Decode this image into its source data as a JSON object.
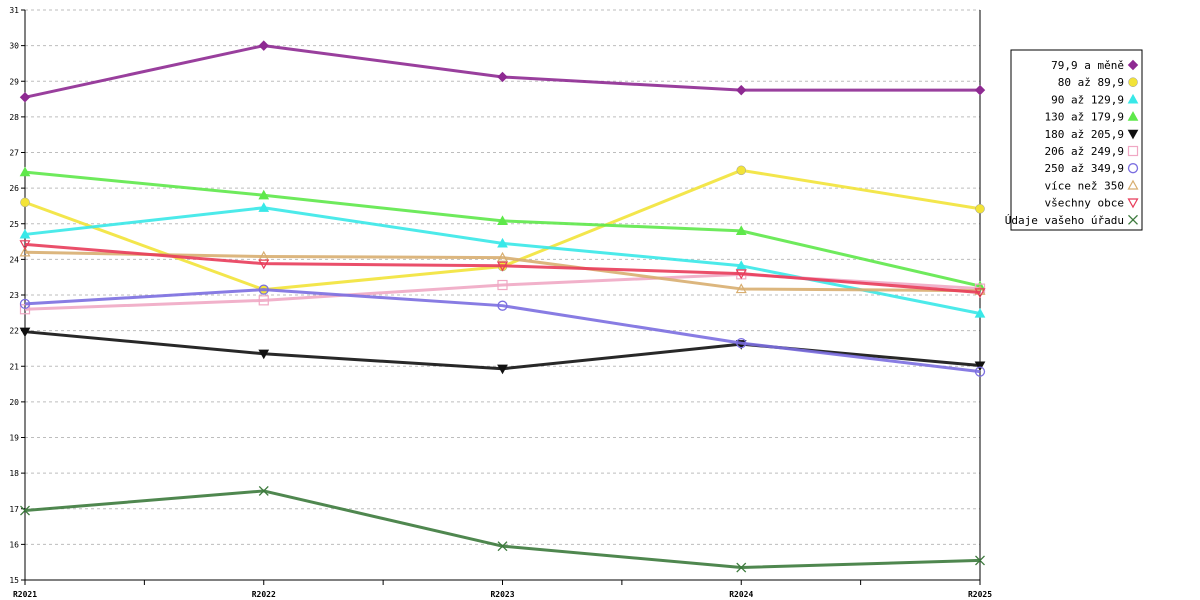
{
  "chart_data": {
    "type": "line",
    "categories": [
      "R2021",
      "R2022",
      "R2023",
      "R2024",
      "R2025"
    ],
    "ylim": [
      15,
      31
    ],
    "yticks": [
      15,
      16,
      17,
      18,
      19,
      20,
      21,
      22,
      23,
      24,
      25,
      26,
      27,
      28,
      29,
      30,
      31
    ],
    "grid": true,
    "legend_position": "right",
    "series": [
      {
        "name": "79,9 a měně",
        "color": "#8e2a92",
        "marker": "diamond",
        "values": [
          28.55,
          30.0,
          29.12,
          28.75,
          28.75
        ]
      },
      {
        "name": "80 až 89,9",
        "color": "#f2e338",
        "marker": "circle-filled",
        "values": [
          25.6,
          23.15,
          23.8,
          26.5,
          25.42
        ]
      },
      {
        "name": "90 až 129,9",
        "color": "#38e8e8",
        "marker": "triangle-up-filled",
        "values": [
          24.7,
          25.45,
          24.45,
          23.82,
          22.48
        ]
      },
      {
        "name": "130 až 179,9",
        "color": "#5ee84a",
        "marker": "triangle-up-filled",
        "values": [
          26.45,
          25.8,
          25.08,
          24.8,
          23.25
        ]
      },
      {
        "name": "180 až 205,9",
        "color": "#111111",
        "marker": "triangle-down-filled",
        "values": [
          21.97,
          21.35,
          20.93,
          21.62,
          21.02
        ]
      },
      {
        "name": "206 až 249,9",
        "color": "#f0a8c4",
        "marker": "square-open",
        "values": [
          22.6,
          22.85,
          23.28,
          23.58,
          23.18
        ]
      },
      {
        "name": "250 až 349,9",
        "color": "#7b6ee0",
        "marker": "circle-open",
        "values": [
          22.75,
          23.15,
          22.7,
          21.65,
          20.85
        ]
      },
      {
        "name": "více než 350",
        "color": "#d8ae70",
        "marker": "triangle-up-open",
        "values": [
          24.2,
          24.08,
          24.05,
          23.17,
          23.12
        ]
      },
      {
        "name": "všechny obce",
        "color": "#e83c5a",
        "marker": "triangle-down-open",
        "values": [
          24.42,
          23.88,
          23.82,
          23.6,
          23.07
        ]
      },
      {
        "name": "Údaje vašeho úřadu",
        "color": "#3c7a3c",
        "marker": "x",
        "values": [
          16.95,
          17.5,
          15.95,
          15.35,
          15.55
        ]
      }
    ]
  }
}
